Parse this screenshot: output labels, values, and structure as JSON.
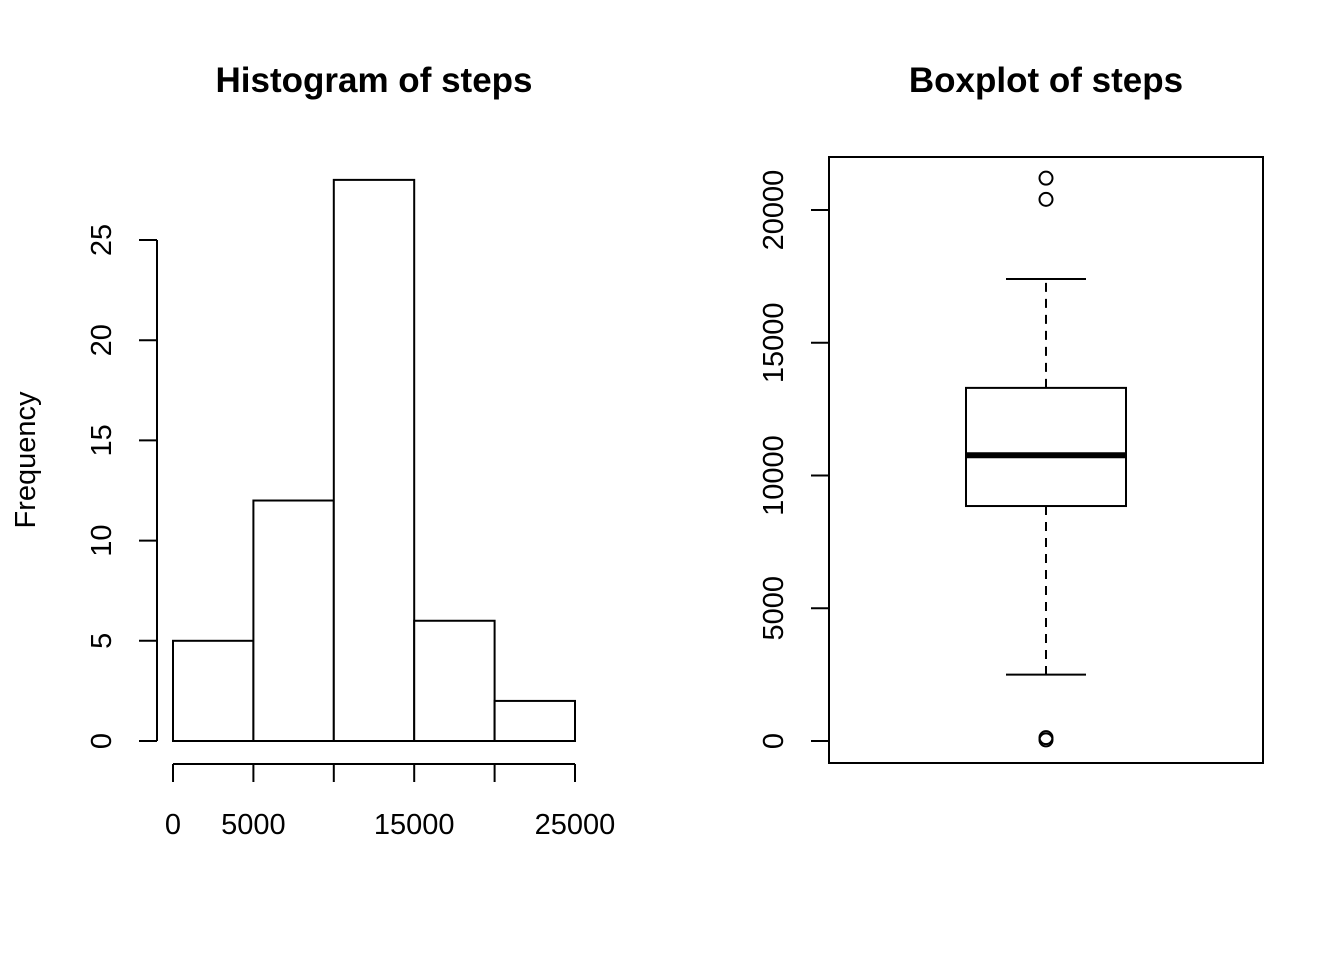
{
  "chart_data": [
    {
      "type": "bar",
      "subtype": "histogram",
      "title": "Histogram of steps",
      "xlabel": "",
      "ylabel": "Frequency",
      "bins": [
        [
          0,
          5000
        ],
        [
          5000,
          10000
        ],
        [
          10000,
          15000
        ],
        [
          15000,
          20000
        ],
        [
          20000,
          25000
        ]
      ],
      "values": [
        5,
        12,
        28,
        6,
        2
      ],
      "xlim": [
        0,
        25000
      ],
      "ylim": [
        0,
        28
      ],
      "xticks": [
        0,
        5000,
        10000,
        15000,
        20000,
        25000
      ],
      "xtick_labels": [
        "0",
        "5000",
        "",
        "15000",
        "",
        "25000"
      ],
      "yticks": [
        0,
        5,
        10,
        15,
        20,
        25
      ],
      "ytick_labels": [
        "0",
        "5",
        "10",
        "15",
        "20",
        "25"
      ],
      "grid": false
    },
    {
      "type": "box",
      "title": "Boxplot of steps",
      "xlabel": "",
      "ylabel": "",
      "whisker_low": 2500,
      "q1": 8850,
      "median": 10765,
      "q3": 13300,
      "whisker_high": 17400,
      "outliers": [
        41,
        126,
        20400,
        21200
      ],
      "ylim": [
        0,
        22000
      ],
      "yticks": [
        0,
        5000,
        10000,
        15000,
        20000
      ],
      "ytick_labels": [
        "0",
        "5000",
        "10000",
        "15000",
        "20000"
      ],
      "grid": false
    }
  ]
}
